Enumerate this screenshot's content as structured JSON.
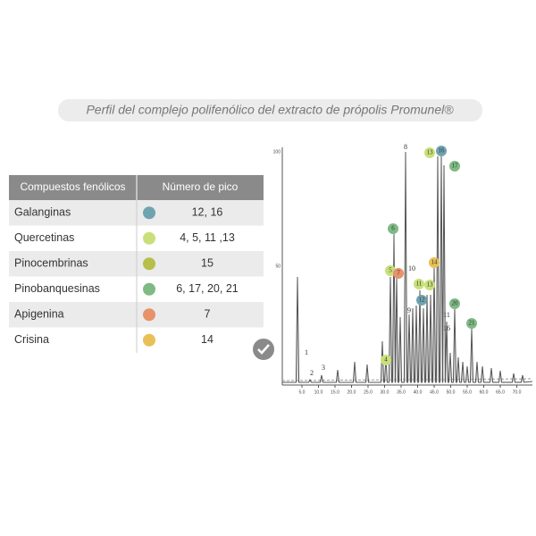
{
  "title": "Perfil del complejo polifenólico del extracto de própolis Promunel®",
  "table": {
    "headers": [
      "Compuestos fenólicos",
      "Número de pico"
    ],
    "rows": [
      {
        "compound": "Galanginas",
        "color": "#6fa3b0",
        "peaks": "12, 16"
      },
      {
        "compound": "Quercetinas",
        "color": "#c9e07a",
        "peaks": "4, 5, 11 ,13"
      },
      {
        "compound": "Pinocembrinas",
        "color": "#b5bf4a",
        "peaks": "15"
      },
      {
        "compound": "Pinobanquesinas",
        "color": "#7fba84",
        "peaks": "6, 17, 20, 21"
      },
      {
        "compound": "Apigenina",
        "color": "#e8926a",
        "peaks": "7"
      },
      {
        "compound": "Crisina",
        "color": "#e8c055",
        "peaks": "14"
      }
    ]
  },
  "chromatogram": {
    "x_ticks": [
      "5.0",
      "10.0",
      "15.0",
      "20.0",
      "25.0",
      "30.0",
      "35.0",
      "40.0",
      "45.0",
      "50.0",
      "55.0",
      "60.0",
      "65.0",
      "70.0"
    ],
    "y_ticks": [
      "100",
      "50"
    ],
    "peaks": [
      {
        "label": "8"
      },
      {
        "label": "13",
        "color": "#c9e07a"
      },
      {
        "label": "16",
        "color": "#6fa3b0"
      },
      {
        "label": "17",
        "color": "#7fba84"
      },
      {
        "label": "6",
        "color": "#7fba84"
      },
      {
        "label": "5",
        "color": "#c9e07a"
      },
      {
        "label": "7",
        "color": "#e8926a"
      },
      {
        "label": "10"
      },
      {
        "label": "14",
        "color": "#e8c055"
      },
      {
        "label": "11",
        "color": "#c9e07a"
      },
      {
        "label": "13",
        "color": "#c9e07a"
      },
      {
        "label": "12",
        "color": "#6fa3b0"
      },
      {
        "label": "20",
        "color": "#7fba84"
      },
      {
        "label": "9"
      },
      {
        "label": "21",
        "color": "#7fba84"
      },
      {
        "label": "11"
      },
      {
        "label": "16"
      },
      {
        "label": "4",
        "color": "#c9e07a"
      },
      {
        "label": "1"
      },
      {
        "label": "2"
      },
      {
        "label": "3"
      }
    ]
  }
}
